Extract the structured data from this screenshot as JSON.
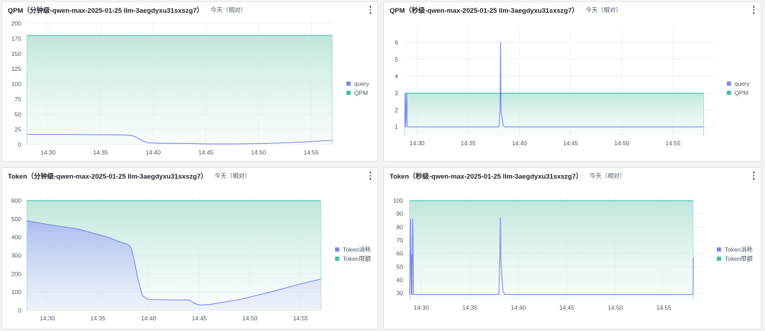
{
  "panels": [
    {
      "title": "QPM（分钟级-qwen-max-2025-01-25 llm-3aegdyxu31sxszg7）",
      "range": "今天（相对）",
      "chart_data": {
        "type": "line",
        "ylim": [
          0,
          200
        ],
        "yticks": [
          "0",
          "25",
          "50",
          "75",
          "100",
          "125",
          "150",
          "175",
          "200"
        ],
        "xlim": [
          "14:28",
          "14:57"
        ],
        "xticks": [
          "14:30",
          "14:35",
          "14:40",
          "14:45",
          "14:50",
          "14:55"
        ],
        "legend_position": "right",
        "series": [
          {
            "name": "query",
            "color": "#7a86f2",
            "fill": "none",
            "points": [
              [
                "14:28",
                17
              ],
              [
                "14:31",
                17
              ],
              [
                "14:34",
                16.5
              ],
              [
                "14:37",
                16
              ],
              [
                "14:38",
                15
              ],
              [
                "14:38.5",
                11
              ],
              [
                "14:39",
                6
              ],
              [
                "14:39.5",
                3
              ],
              [
                "14:41",
                2
              ],
              [
                "14:43",
                2
              ],
              [
                "14:45",
                1
              ],
              [
                "14:48",
                1
              ],
              [
                "14:51",
                2
              ],
              [
                "14:54",
                4
              ],
              [
                "14:57",
                7
              ]
            ]
          },
          {
            "name": "QPM",
            "color": "#3fbfaa",
            "fill": "green",
            "points": [
              [
                "14:28",
                180
              ],
              [
                "14:57",
                180
              ]
            ]
          }
        ]
      }
    },
    {
      "title": "QPM（秒级-qwen-max-2025-01-25 llm-3aegdyxu31sxszg7）",
      "range": "今天（相对）",
      "chart_data": {
        "type": "line",
        "ylim": [
          0.5,
          6.5
        ],
        "yticks": [
          "1",
          "2",
          "3",
          "4",
          "5",
          "6"
        ],
        "xlim": [
          "14:28.7",
          "14:59"
        ],
        "xticks": [
          "14:30",
          "14:35",
          "14:40",
          "14:45",
          "14:50",
          "14:55"
        ],
        "legend_position": "right",
        "series": [
          {
            "name": "query",
            "color": "#7a86f2",
            "fill": "none",
            "points": [
              [
                "14:28.8",
                1
              ],
              [
                "14:28.85",
                3
              ],
              [
                "14:28.9",
                1
              ],
              [
                "14:28.95",
                2
              ],
              [
                "14:29.0",
                3
              ],
              [
                "14:29.05",
                1
              ],
              [
                "14:29.1",
                1
              ],
              [
                "14:38.0",
                1
              ],
              [
                "14:38.1",
                2
              ],
              [
                "14:38.15",
                6
              ],
              [
                "14:38.2",
                2
              ],
              [
                "14:38.4",
                1.1
              ],
              [
                "14:38.6",
                1
              ],
              [
                "14:58",
                1
              ]
            ]
          },
          {
            "name": "QPM",
            "color": "#3fbfaa",
            "fill": "green",
            "points": [
              [
                "14:28.8",
                3
              ],
              [
                "14:58",
                3
              ]
            ]
          }
        ]
      }
    },
    {
      "title": "Token（分钟级-qwen-max-2025-01-25 llm-3aegdyxu31sxszg7）",
      "range": "今天（相对）",
      "chart_data": {
        "type": "area",
        "ylim": [
          0,
          600
        ],
        "yticks": [
          "0",
          "100",
          "200",
          "300",
          "400",
          "500",
          "600"
        ],
        "xlim": [
          "14:28",
          "14:57"
        ],
        "xticks": [
          "14:30",
          "14:35",
          "14:40",
          "14:45",
          "14:50",
          "14:55"
        ],
        "legend_position": "right",
        "series": [
          {
            "name": "Token消耗",
            "color": "#7a86f2",
            "fill": "blue",
            "points": [
              [
                "14:28",
                490
              ],
              [
                "14:30",
                470
              ],
              [
                "14:33",
                445
              ],
              [
                "14:36",
                400
              ],
              [
                "14:37",
                378
              ],
              [
                "14:38",
                360
              ],
              [
                "14:38.3",
                340
              ],
              [
                "14:38.6",
                270
              ],
              [
                "14:39",
                160
              ],
              [
                "14:39.4",
                80
              ],
              [
                "14:40",
                60
              ],
              [
                "14:42",
                58
              ],
              [
                "14:44",
                57
              ],
              [
                "14:44.5",
                40
              ],
              [
                "14:45",
                30
              ],
              [
                "14:46",
                32
              ],
              [
                "14:49",
                60
              ],
              [
                "14:52",
                100
              ],
              [
                "14:55",
                145
              ],
              [
                "14:57",
                172
              ]
            ]
          },
          {
            "name": "Token限额",
            "color": "#3fbfaa",
            "fill": "green",
            "points": [
              [
                "14:28",
                600
              ],
              [
                "14:57",
                600
              ]
            ]
          }
        ]
      }
    },
    {
      "title": "Token（秒级-qwen-max-2025-01-25 llm-3aegdyxu31sxszg7）",
      "range": "今天（相对）",
      "chart_data": {
        "type": "line",
        "ylim": [
          25,
          100
        ],
        "yticks": [
          "30",
          "40",
          "50",
          "60",
          "70",
          "80",
          "90",
          "100"
        ],
        "xlim": [
          "14:28.7",
          "14:59"
        ],
        "xticks": [
          "14:30",
          "14:35",
          "14:40",
          "14:45",
          "14:50",
          "14:55"
        ],
        "legend_position": "right",
        "series": [
          {
            "name": "Token消耗",
            "color": "#7a86f2",
            "fill": "none",
            "points": [
              [
                "14:28.8",
                29
              ],
              [
                "14:28.9",
                86
              ],
              [
                "14:28.95",
                29
              ],
              [
                "14:29.0",
                59
              ],
              [
                "14:29.05",
                29
              ],
              [
                "14:29.1",
                86
              ],
              [
                "14:29.15",
                70
              ],
              [
                "14:29.2",
                29
              ],
              [
                "14:38.0",
                29
              ],
              [
                "14:38.1",
                60
              ],
              [
                "14:38.15",
                87
              ],
              [
                "14:38.2",
                55
              ],
              [
                "14:38.4",
                32
              ],
              [
                "14:38.6",
                29
              ],
              [
                "14:58",
                29
              ],
              [
                "14:58.05",
                57
              ]
            ]
          },
          {
            "name": "Token限额",
            "color": "#3fbfaa",
            "fill": "green",
            "points": [
              [
                "14:28.8",
                100
              ],
              [
                "14:58",
                100
              ]
            ]
          }
        ]
      }
    }
  ]
}
